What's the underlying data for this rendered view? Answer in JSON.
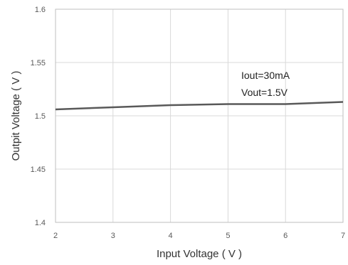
{
  "chart_data": {
    "type": "line",
    "xlabel": "Input Voltage ( V )",
    "ylabel": "Outpit Voltage ( V )",
    "xlim": [
      2,
      7
    ],
    "ylim": [
      1.4,
      1.6
    ],
    "x_ticks": [
      "2",
      "3",
      "4",
      "5",
      "6",
      "7"
    ],
    "y_ticks": [
      "1.4",
      "1.45",
      "1.5",
      "1.55",
      "1.6"
    ],
    "grid": true,
    "series": [
      {
        "x": [
          2,
          3,
          4,
          5,
          6,
          7
        ],
        "y": [
          1.506,
          1.508,
          1.51,
          1.511,
          1.511,
          1.513
        ],
        "color": "#595959"
      }
    ],
    "annotations": [
      "Iout=30mA",
      "Vout=1.5V"
    ]
  }
}
